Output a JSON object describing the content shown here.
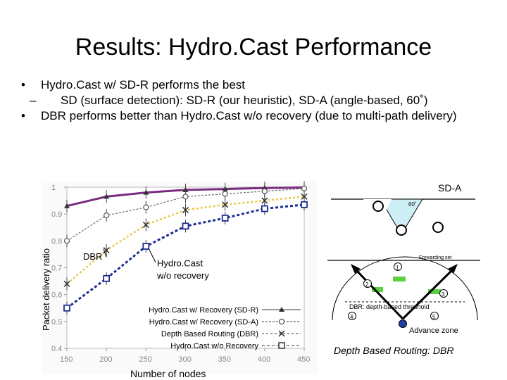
{
  "slide": {
    "title": "Results: Hydro.Cast Performance",
    "bullets": [
      {
        "marker": "•",
        "text": "Hydro.Cast w/ SD-R performs the best"
      },
      {
        "marker": "–",
        "text": "SD (surface detection): SD-R (our heuristic), SD-A (angle-based, 60˚)"
      },
      {
        "marker": "•",
        "text": "DBR performs better than Hydro.Cast w/o recovery (due to multi-path delivery)"
      }
    ]
  },
  "chart_data": {
    "type": "line",
    "ylabel": "Packet delivery ratio",
    "xlabel": "Number of nodes",
    "x": [
      150,
      200,
      250,
      300,
      350,
      400,
      450
    ],
    "xticks": [
      "150",
      "200",
      "250",
      "300",
      "350",
      "400",
      "450"
    ],
    "yticks": [
      "0.4",
      "0.5",
      "0.6",
      "0.7",
      "0.8",
      "0.9",
      "1"
    ],
    "ylim": [
      0.4,
      1.0
    ],
    "series": [
      {
        "name": "Hydro.Cast w/ Recovery (SD-R)",
        "color": "#7a2a80",
        "values": [
          0.93,
          0.965,
          0.98,
          0.99,
          0.993,
          0.997,
          0.999
        ]
      },
      {
        "name": "Hydro.Cast w/ Recovery (SD-A)",
        "color": "#6e6e6e",
        "values": [
          0.8,
          0.895,
          0.925,
          0.965,
          0.975,
          0.985,
          0.995
        ]
      },
      {
        "name": "Depth Based Routing (DBR)",
        "color": "#e6c84a",
        "values": [
          0.64,
          0.765,
          0.86,
          0.915,
          0.935,
          0.95,
          0.965
        ]
      },
      {
        "name": "Hydro.Cast w/o Recovery",
        "color": "#1c2c90",
        "values": [
          0.55,
          0.66,
          0.78,
          0.855,
          0.885,
          0.92,
          0.935
        ]
      }
    ],
    "annotations": {
      "dbr": "DBR",
      "nore1": "Hydro.Cast",
      "nore2": "w/o recovery"
    }
  },
  "dbr_figure": {
    "sda_label": "SD-A",
    "angle_label": "60˚",
    "forwarding_set": "Forwarding set",
    "threshold": "DBR: depth-based threshold",
    "advance_zone": "Advance zone",
    "nodes": [
      "1",
      "2",
      "3",
      "4",
      "5"
    ],
    "caption": "Depth Based Routing: DBR"
  }
}
